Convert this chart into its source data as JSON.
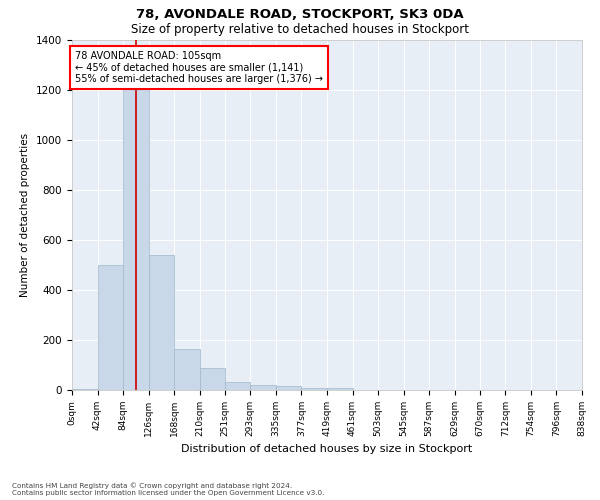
{
  "title1": "78, AVONDALE ROAD, STOCKPORT, SK3 0DA",
  "title2": "Size of property relative to detached houses in Stockport",
  "xlabel": "Distribution of detached houses by size in Stockport",
  "ylabel": "Number of detached properties",
  "bar_color": "#c8d8e8",
  "bar_edge_color": "#a0b8cc",
  "background_color": "#e8eef5",
  "bin_edges": [
    0,
    42,
    84,
    126,
    168,
    210,
    251,
    293,
    335,
    377,
    419,
    461,
    503,
    545,
    587,
    629,
    670,
    712,
    754,
    796,
    838
  ],
  "bar_values": [
    5,
    500,
    1250,
    540,
    165,
    90,
    32,
    22,
    15,
    8,
    7,
    0,
    0,
    0,
    0,
    0,
    0,
    0,
    0,
    0
  ],
  "tick_labels": [
    "0sqm",
    "42sqm",
    "84sqm",
    "126sqm",
    "168sqm",
    "210sqm",
    "251sqm",
    "293sqm",
    "335sqm",
    "377sqm",
    "419sqm",
    "461sqm",
    "503sqm",
    "545sqm",
    "587sqm",
    "629sqm",
    "670sqm",
    "712sqm",
    "754sqm",
    "796sqm",
    "838sqm"
  ],
  "property_label": "78 AVONDALE ROAD: 105sqm",
  "annotation_line1": "← 45% of detached houses are smaller (1,141)",
  "annotation_line2": "55% of semi-detached houses are larger (1,376) →",
  "vline_x": 105,
  "vline_color": "#cc0000",
  "ylim": [
    0,
    1400
  ],
  "yticks": [
    0,
    200,
    400,
    600,
    800,
    1000,
    1200,
    1400
  ],
  "footnote1": "Contains HM Land Registry data © Crown copyright and database right 2024.",
  "footnote2": "Contains public sector information licensed under the Open Government Licence v3.0."
}
